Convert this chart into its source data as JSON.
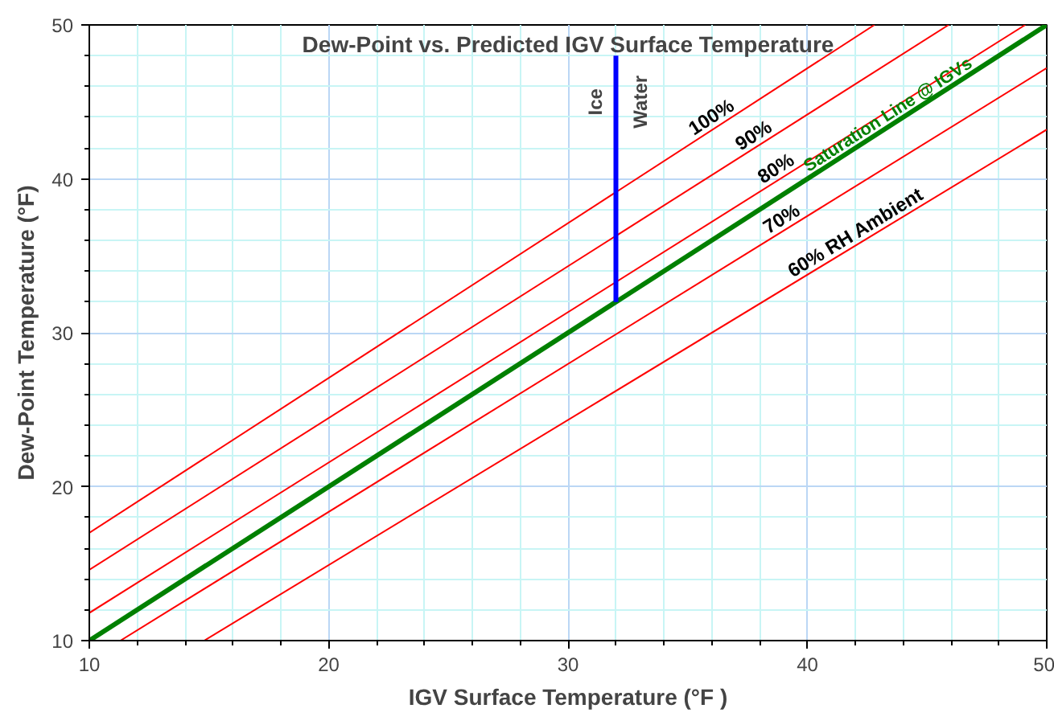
{
  "chart_data": {
    "type": "line",
    "title": "Dew-Point vs. Predicted IGV Surface Temperature",
    "xlabel": "IGV Surface Temperature (°F )",
    "ylabel": "Dew-Point Temperature (°F)",
    "xlim": [
      10,
      50
    ],
    "ylim": [
      10,
      50
    ],
    "xticks": [
      10,
      {
        "value": 12,
        "label": null
      },
      {
        "value": 14,
        "label": null
      },
      {
        "value": 16,
        "label": null
      },
      {
        "value": 18,
        "label": null
      },
      20,
      {
        "value": 22,
        "label": null
      },
      {
        "value": 24,
        "label": null
      },
      {
        "value": 26,
        "label": null
      },
      {
        "value": 28,
        "label": null
      },
      30,
      {
        "value": 32,
        "label": null
      },
      {
        "value": 34,
        "label": null
      },
      {
        "value": 36,
        "label": null
      },
      {
        "value": 38,
        "label": null
      },
      40,
      {
        "value": 42,
        "label": null
      },
      {
        "value": 44,
        "label": null
      },
      {
        "value": 46,
        "label": null
      },
      {
        "value": 48,
        "label": null
      },
      50
    ],
    "yticks": [
      10,
      {
        "value": 12,
        "label": null
      },
      {
        "value": 14,
        "label": null
      },
      {
        "value": 16,
        "label": null
      },
      {
        "value": 18,
        "label": null
      },
      20,
      {
        "value": 22,
        "label": null
      },
      {
        "value": 24,
        "label": null
      },
      {
        "value": 26,
        "label": null
      },
      {
        "value": 28,
        "label": null
      },
      30,
      {
        "value": 32,
        "label": null
      },
      {
        "value": 34,
        "label": null
      },
      {
        "value": 36,
        "label": null
      },
      {
        "value": 38,
        "label": null
      },
      40,
      {
        "value": 42,
        "label": null
      },
      {
        "value": 44,
        "label": null
      },
      {
        "value": 46,
        "label": null
      },
      {
        "value": 48,
        "label": null
      },
      50
    ],
    "grid": true,
    "series": [
      {
        "name": "100%",
        "color": "#ff0000",
        "x": [
          10,
          42.8
        ],
        "values": [
          17.0,
          50
        ]
      },
      {
        "name": "90%",
        "color": "#ff0000",
        "x": [
          10,
          45.9
        ],
        "values": [
          14.6,
          50
        ]
      },
      {
        "name": "80%",
        "color": "#ff0000",
        "x": [
          10,
          49.1
        ],
        "values": [
          11.8,
          50
        ]
      },
      {
        "name": "Saturation Line @ IGVs",
        "color": "#008000",
        "x": [
          10,
          50
        ],
        "values": [
          10,
          50
        ]
      },
      {
        "name": "70%",
        "color": "#ff0000",
        "x": [
          11.3,
          50
        ],
        "values": [
          10,
          47.2
        ]
      },
      {
        "name": "60% RH Ambient",
        "color": "#ff0000",
        "x": [
          14.8,
          50
        ],
        "values": [
          10,
          43.2
        ]
      },
      {
        "color": "#0000ff",
        "x": [
          32,
          32
        ],
        "values": [
          32,
          48
        ]
      }
    ],
    "annotations": [
      {
        "text": "Ice",
        "x": 32,
        "y": 45
      },
      {
        "text": "Water",
        "x": 32,
        "y": 45
      }
    ]
  }
}
